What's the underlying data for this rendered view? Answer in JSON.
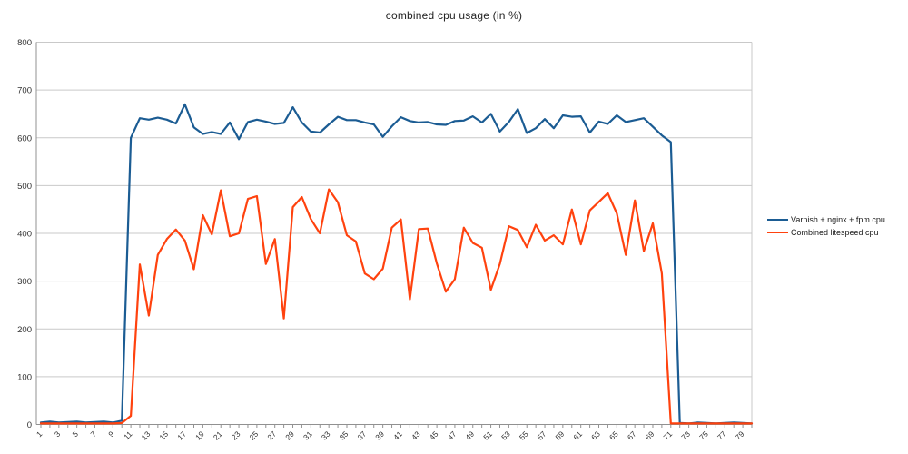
{
  "title": "combined cpu usage (in %)",
  "chart_data": {
    "type": "line",
    "title": "combined cpu usage (in %)",
    "xlabel": "",
    "ylabel": "",
    "ylim": [
      0,
      800
    ],
    "y_ticks": [
      0,
      100,
      200,
      300,
      400,
      500,
      600,
      700,
      800
    ],
    "x_tick_labels": [
      1,
      3,
      5,
      7,
      9,
      11,
      13,
      15,
      17,
      19,
      21,
      23,
      25,
      27,
      29,
      31,
      33,
      35,
      37,
      39,
      41,
      43,
      45,
      47,
      49,
      51,
      53,
      55,
      57,
      59,
      61,
      63,
      65,
      67,
      69,
      71,
      73,
      75,
      77,
      79
    ],
    "n_points": 80,
    "grid": "horizontal",
    "legend_position": "right",
    "grid_color": "#c9c9c9",
    "axis_color": "#919191",
    "label_color": "#333333",
    "series": [
      {
        "name": "Varnish + nginx + fpm cpu",
        "color": "#1b5c93",
        "values": [
          4,
          6,
          4,
          5,
          6,
          4,
          5,
          6,
          4,
          8,
          600,
          641,
          638,
          642,
          638,
          630,
          670,
          622,
          608,
          612,
          608,
          632,
          597,
          633,
          638,
          634,
          629,
          631,
          664,
          632,
          613,
          611,
          628,
          644,
          637,
          637,
          632,
          628,
          602,
          624,
          643,
          635,
          632,
          633,
          628,
          627,
          635,
          636,
          645,
          632,
          650,
          613,
          633,
          660,
          610,
          620,
          639,
          620,
          647,
          644,
          645,
          611,
          634,
          629,
          647,
          633,
          637,
          641,
          623,
          605,
          591,
          3,
          2,
          4,
          3,
          2,
          3,
          4,
          3,
          2
        ]
      },
      {
        "name": "Combined litespeed cpu",
        "color": "#ff420e",
        "values": [
          2,
          2,
          2,
          2,
          2,
          2,
          2,
          2,
          2,
          3,
          18,
          335,
          228,
          355,
          388,
          408,
          385,
          325,
          438,
          398,
          490,
          394,
          400,
          472,
          478,
          336,
          388,
          222,
          455,
          476,
          430,
          400,
          492,
          465,
          396,
          383,
          316,
          304,
          326,
          412,
          429,
          262,
          409,
          410,
          337,
          278,
          304,
          412,
          380,
          370,
          282,
          336,
          415,
          407,
          371,
          418,
          385,
          396,
          377,
          450,
          377,
          448,
          466,
          484,
          442,
          355,
          469,
          363,
          421,
          316,
          2,
          2,
          2,
          2,
          2,
          2,
          2,
          2,
          2,
          2
        ]
      }
    ]
  }
}
